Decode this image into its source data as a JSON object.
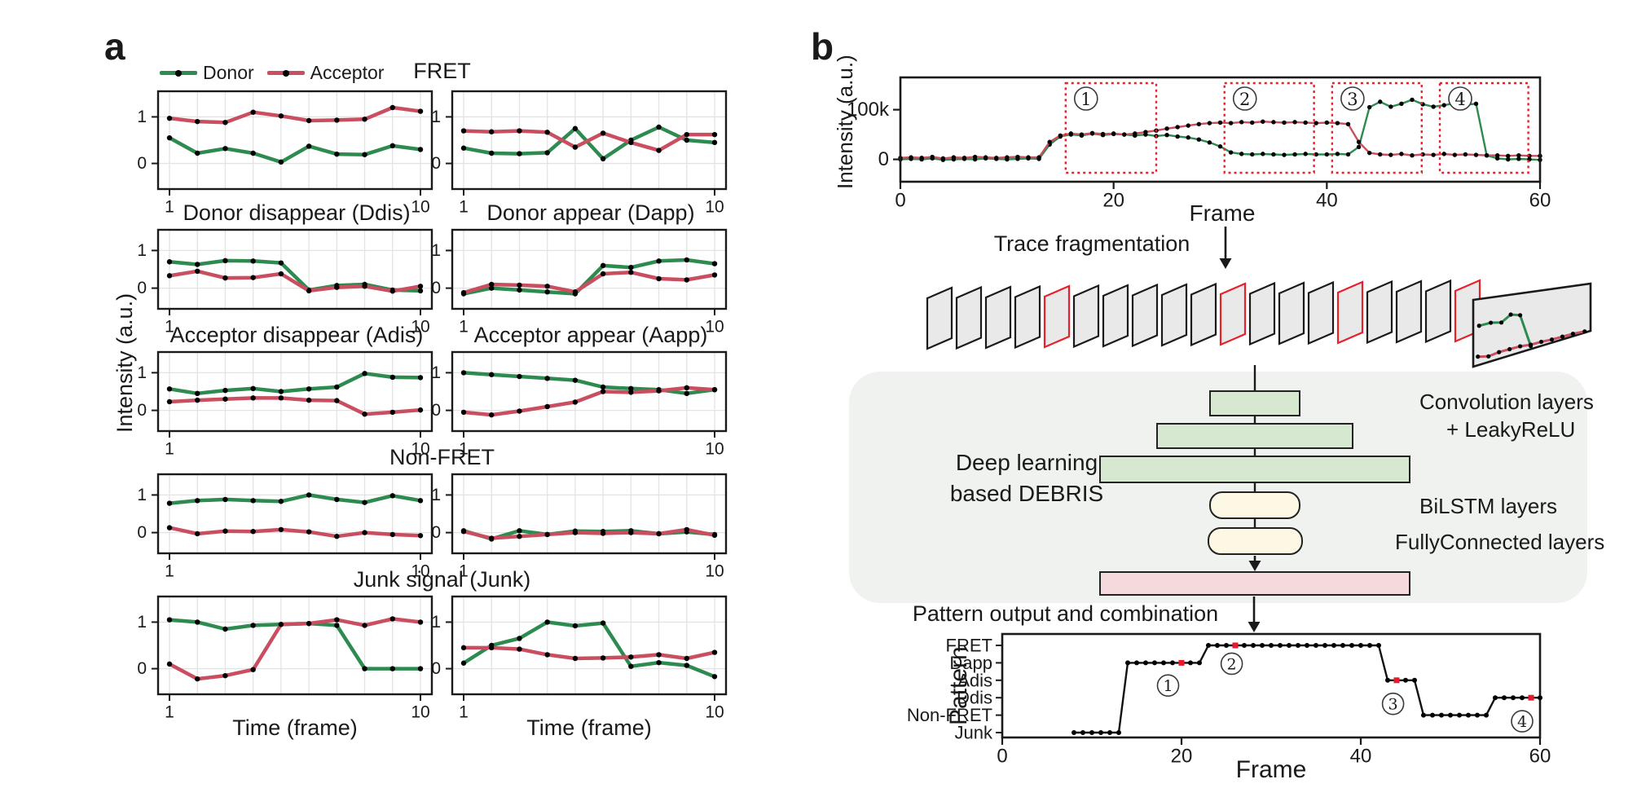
{
  "colors": {
    "donor": "#2e8b50",
    "acceptor": "#c94f60",
    "fragment_box": "#e8202a",
    "marker_red": "#e8192c",
    "grid": "#e3e3e3",
    "axis": "#1a1a1a",
    "conv_fill": "#d7e8d0",
    "lstm_fill": "#fcf8e3",
    "fc_fill": "#f5dadd",
    "diagram_bg": "#eff2ef",
    "card_fill": "#e9e9e9",
    "card_red": "#e8202a",
    "card_black": "#1a1a1a"
  },
  "panel_a": {
    "label": "a",
    "legend": [
      {
        "name": "Donor",
        "color": "#2e8b50"
      },
      {
        "name": "Acceptor",
        "color": "#c94f60"
      }
    ],
    "ylabel": "Intensity (a.u.)",
    "xlabel": "Time (frame)",
    "row_titles": [
      {
        "center": "FRET"
      },
      {
        "left": "Donor disappear (Ddis)",
        "right": "Donor appear (Dapp)"
      },
      {
        "left": "Acceptor disappear (Adis)",
        "right": "Acceptor appear (Aapp)"
      },
      {
        "center": "Non-FRET"
      },
      {
        "center": "Junk signal (Junk)"
      }
    ]
  },
  "panel_b": {
    "label": "b",
    "top_chart": {
      "ylabel": "Intensity (a.u.)",
      "xlabel": "Frame"
    },
    "flow": {
      "trace_fragmentation": "Trace fragmentation",
      "deep_line1": "Deep learning",
      "deep_line2": "based DEBRIS",
      "conv_label_1": "Convolution layers",
      "conv_label_2": "+ LeakyReLU",
      "bilstm_label": "BiLSTM layers",
      "fc_label": "FullyConnected layers",
      "pattern_output": "Pattern output and combination"
    },
    "pattern_chart": {
      "ylabel": "Pattern",
      "xlabel": "Frame"
    }
  },
  "stack": {
    "thin_cards": 19,
    "red_card_indices": [
      4,
      10,
      14,
      18
    ],
    "front_card_trace": {
      "donor": [
        [
          0.05,
          0.4
        ],
        [
          0.15,
          0.38
        ],
        [
          0.24,
          0.4
        ],
        [
          0.32,
          0.3
        ],
        [
          0.4,
          0.33
        ],
        [
          0.49,
          0.82
        ]
      ],
      "acceptor": [
        [
          0.04,
          0.86
        ],
        [
          0.13,
          0.88
        ],
        [
          0.22,
          0.84
        ],
        [
          0.31,
          0.82
        ],
        [
          0.4,
          0.8
        ],
        [
          0.49,
          0.8
        ],
        [
          0.58,
          0.78
        ],
        [
          0.67,
          0.77
        ],
        [
          0.76,
          0.75
        ],
        [
          0.85,
          0.73
        ],
        [
          0.95,
          0.72
        ]
      ]
    }
  },
  "chart_data": [
    {
      "id": "fret_1",
      "type": "line",
      "panel": "a",
      "row": 0,
      "col": 0,
      "title": "FRET",
      "xlabel": "Time (frame)",
      "ylabel": "Intensity (a.u.)",
      "x": [
        1,
        2,
        3,
        4,
        5,
        6,
        7,
        8,
        9,
        10
      ],
      "ylim": [
        -0.55,
        1.55
      ],
      "yticks": [
        1,
        0
      ],
      "xticks": [
        1,
        10
      ],
      "series": [
        {
          "name": "Donor",
          "values": [
            0.55,
            0.22,
            0.32,
            0.22,
            0.03,
            0.37,
            0.2,
            0.19,
            0.38,
            0.3
          ]
        },
        {
          "name": "Acceptor",
          "values": [
            0.97,
            0.9,
            0.88,
            1.1,
            1.02,
            0.92,
            0.93,
            0.95,
            1.2,
            1.12
          ]
        }
      ]
    },
    {
      "id": "fret_2",
      "type": "line",
      "panel": "a",
      "row": 0,
      "col": 1,
      "title": "FRET",
      "xlabel": "Time (frame)",
      "ylabel": "Intensity (a.u.)",
      "x": [
        1,
        2,
        3,
        4,
        5,
        6,
        7,
        8,
        9,
        10
      ],
      "ylim": [
        -0.55,
        1.55
      ],
      "yticks": [
        1,
        0
      ],
      "xticks": [
        1,
        10
      ],
      "series": [
        {
          "name": "Donor",
          "values": [
            0.33,
            0.22,
            0.21,
            0.23,
            0.75,
            0.1,
            0.5,
            0.78,
            0.5,
            0.45
          ]
        },
        {
          "name": "Acceptor",
          "values": [
            0.7,
            0.68,
            0.7,
            0.67,
            0.35,
            0.65,
            0.45,
            0.28,
            0.62,
            0.62
          ]
        }
      ]
    },
    {
      "id": "ddis",
      "type": "line",
      "panel": "a",
      "row": 1,
      "col": 0,
      "title": "Donor disappear (Ddis)",
      "xlabel": "Time (frame)",
      "ylabel": "Intensity (a.u.)",
      "x": [
        1,
        2,
        3,
        4,
        5,
        6,
        7,
        8,
        9,
        10
      ],
      "ylim": [
        -0.55,
        1.55
      ],
      "yticks": [
        1,
        0
      ],
      "xticks": [
        1,
        10
      ],
      "series": [
        {
          "name": "Donor",
          "values": [
            0.7,
            0.63,
            0.73,
            0.72,
            0.67,
            -0.05,
            0.07,
            0.1,
            -0.05,
            -0.07
          ]
        },
        {
          "name": "Acceptor",
          "values": [
            0.33,
            0.45,
            0.27,
            0.28,
            0.38,
            -0.07,
            0.02,
            0.05,
            -0.08,
            0.05
          ]
        }
      ]
    },
    {
      "id": "dapp",
      "type": "line",
      "panel": "a",
      "row": 1,
      "col": 1,
      "title": "Donor appear (Dapp)",
      "xlabel": "Time (frame)",
      "ylabel": "Intensity (a.u.)",
      "x": [
        1,
        2,
        3,
        4,
        5,
        6,
        7,
        8,
        9,
        10
      ],
      "ylim": [
        -0.55,
        1.55
      ],
      "yticks": [
        1,
        0
      ],
      "xticks": [
        1,
        10
      ],
      "series": [
        {
          "name": "Donor",
          "values": [
            -0.15,
            0.0,
            -0.05,
            -0.1,
            -0.15,
            0.6,
            0.55,
            0.72,
            0.75,
            0.65
          ]
        },
        {
          "name": "Acceptor",
          "values": [
            -0.12,
            0.1,
            0.08,
            0.05,
            -0.1,
            0.38,
            0.42,
            0.25,
            0.22,
            0.35
          ]
        }
      ]
    },
    {
      "id": "adis",
      "type": "line",
      "panel": "a",
      "row": 2,
      "col": 0,
      "title": "Acceptor disappear (Adis)",
      "xlabel": "Time (frame)",
      "ylabel": "Intensity (a.u.)",
      "x": [
        1,
        2,
        3,
        4,
        5,
        6,
        7,
        8,
        9,
        10
      ],
      "ylim": [
        -0.55,
        1.55
      ],
      "yticks": [
        1,
        0
      ],
      "xticks": [
        1,
        10
      ],
      "series": [
        {
          "name": "Donor",
          "values": [
            0.57,
            0.45,
            0.53,
            0.58,
            0.5,
            0.57,
            0.62,
            0.98,
            0.88,
            0.87
          ]
        },
        {
          "name": "Acceptor",
          "values": [
            0.23,
            0.27,
            0.3,
            0.33,
            0.33,
            0.27,
            0.26,
            -0.1,
            -0.05,
            0.01
          ]
        }
      ]
    },
    {
      "id": "aapp",
      "type": "line",
      "panel": "a",
      "row": 2,
      "col": 1,
      "title": "Acceptor appear (Aapp)",
      "xlabel": "Time (frame)",
      "ylabel": "Intensity (a.u.)",
      "x": [
        1,
        2,
        3,
        4,
        5,
        6,
        7,
        8,
        9,
        10
      ],
      "ylim": [
        -0.55,
        1.55
      ],
      "yticks": [
        1,
        0
      ],
      "xticks": [
        1,
        10
      ],
      "series": [
        {
          "name": "Donor",
          "values": [
            1.0,
            0.95,
            0.9,
            0.85,
            0.8,
            0.62,
            0.58,
            0.55,
            0.45,
            0.55
          ]
        },
        {
          "name": "Acceptor",
          "values": [
            -0.05,
            -0.12,
            -0.02,
            0.1,
            0.22,
            0.5,
            0.48,
            0.52,
            0.6,
            0.55
          ]
        }
      ]
    },
    {
      "id": "nonfret_1",
      "type": "line",
      "panel": "a",
      "row": 3,
      "col": 0,
      "title": "Non-FRET",
      "xlabel": "Time (frame)",
      "ylabel": "Intensity (a.u.)",
      "x": [
        1,
        2,
        3,
        4,
        5,
        6,
        7,
        8,
        9,
        10
      ],
      "ylim": [
        -0.55,
        1.55
      ],
      "yticks": [
        1,
        0
      ],
      "xticks": [
        1,
        10
      ],
      "series": [
        {
          "name": "Donor",
          "values": [
            0.78,
            0.85,
            0.88,
            0.85,
            0.83,
            1.0,
            0.88,
            0.8,
            0.98,
            0.85
          ]
        },
        {
          "name": "Acceptor",
          "values": [
            0.13,
            -0.03,
            0.04,
            0.03,
            0.08,
            0.02,
            -0.1,
            0.0,
            -0.05,
            -0.08
          ]
        }
      ]
    },
    {
      "id": "nonfret_2",
      "type": "line",
      "panel": "a",
      "row": 3,
      "col": 1,
      "title": "Non-FRET",
      "xlabel": "Time (frame)",
      "ylabel": "Intensity (a.u.)",
      "x": [
        1,
        2,
        3,
        4,
        5,
        6,
        7,
        8,
        9,
        10
      ],
      "ylim": [
        -0.55,
        1.55
      ],
      "yticks": [
        1,
        0
      ],
      "xticks": [
        1,
        10
      ],
      "series": [
        {
          "name": "Donor",
          "values": [
            0.05,
            -0.17,
            0.05,
            -0.05,
            0.04,
            0.03,
            0.05,
            -0.03,
            0.02,
            -0.05
          ]
        },
        {
          "name": "Acceptor",
          "values": [
            0.03,
            -0.15,
            -0.1,
            -0.05,
            0.0,
            -0.02,
            0.0,
            -0.03,
            0.08,
            -0.07
          ]
        }
      ]
    },
    {
      "id": "junk_1",
      "type": "line",
      "panel": "a",
      "row": 4,
      "col": 0,
      "title": "Junk signal (Junk)",
      "xlabel": "Time (frame)",
      "ylabel": "Intensity (a.u.)",
      "x": [
        1,
        2,
        3,
        4,
        5,
        6,
        7,
        8,
        9,
        10
      ],
      "ylim": [
        -0.55,
        1.55
      ],
      "yticks": [
        1,
        0
      ],
      "xticks": [
        1,
        10
      ],
      "series": [
        {
          "name": "Donor",
          "values": [
            1.05,
            1.0,
            0.85,
            0.93,
            0.95,
            0.97,
            0.93,
            0.0,
            0.0,
            0.0
          ]
        },
        {
          "name": "Acceptor",
          "values": [
            0.1,
            -0.22,
            -0.15,
            -0.02,
            0.95,
            0.97,
            1.05,
            0.93,
            1.07,
            1.0
          ]
        }
      ]
    },
    {
      "id": "junk_2",
      "type": "line",
      "panel": "a",
      "row": 4,
      "col": 1,
      "title": "Junk signal (Junk)",
      "xlabel": "Time (frame)",
      "ylabel": "Intensity (a.u.)",
      "x": [
        1,
        2,
        3,
        4,
        5,
        6,
        7,
        8,
        9,
        10
      ],
      "ylim": [
        -0.55,
        1.55
      ],
      "yticks": [
        1,
        0
      ],
      "xticks": [
        1,
        10
      ],
      "series": [
        {
          "name": "Donor",
          "values": [
            0.12,
            0.5,
            0.65,
            1.0,
            0.92,
            0.98,
            0.05,
            0.13,
            0.07,
            -0.17
          ]
        },
        {
          "name": "Acceptor",
          "values": [
            0.45,
            0.45,
            0.42,
            0.3,
            0.22,
            0.23,
            0.25,
            0.3,
            0.22,
            0.35
          ]
        }
      ]
    },
    {
      "id": "intensity_trace",
      "type": "line",
      "panel": "b",
      "xlabel": "Frame",
      "ylabel": "Intensity (a.u.)",
      "x_start": 0,
      "x_end": 60,
      "xticks": [
        0,
        20,
        40,
        60
      ],
      "yticks": [
        {
          "value": 100000,
          "label": "100k"
        },
        {
          "value": 0,
          "label": "0"
        }
      ],
      "ylim": [
        -45000,
        165000
      ],
      "series": [
        {
          "name": "Donor",
          "values": [
            0,
            1000,
            0,
            2000,
            -1000,
            0,
            1000,
            0,
            2000,
            1000,
            0,
            1000,
            2000,
            1000,
            30000,
            46000,
            50000,
            48000,
            52000,
            49000,
            51000,
            50000,
            48000,
            50000,
            47000,
            49000,
            46000,
            44000,
            40000,
            34000,
            26000,
            14000,
            11000,
            10000,
            11000,
            10000,
            9000,
            10000,
            11000,
            10000,
            10000,
            11000,
            10000,
            25000,
            105000,
            116000,
            106000,
            112000,
            120000,
            111000,
            106000,
            109000,
            113000,
            110000,
            112000,
            8000,
            2000,
            0,
            1000,
            0,
            -1000
          ]
        },
        {
          "name": "Acceptor",
          "values": [
            3000,
            4000,
            3000,
            5000,
            2000,
            4000,
            3000,
            5000,
            4000,
            3000,
            4000,
            5000,
            4000,
            4000,
            35000,
            48000,
            52000,
            50000,
            53000,
            51000,
            52000,
            50000,
            52000,
            55000,
            58000,
            62000,
            65000,
            68000,
            71000,
            73000,
            74000,
            73000,
            75000,
            74000,
            76000,
            75000,
            74000,
            75000,
            74000,
            73000,
            74000,
            73000,
            71000,
            35000,
            13000,
            10000,
            9000,
            11000,
            8000,
            10000,
            9000,
            11000,
            9000,
            10000,
            9000,
            8000,
            8000,
            7000,
            8000,
            7000,
            7000
          ]
        }
      ],
      "fragments": [
        {
          "num": "1",
          "from": 15.5,
          "to": 24
        },
        {
          "num": "2",
          "from": 30.4,
          "to": 38.8
        },
        {
          "num": "3",
          "from": 40.5,
          "to": 48.9
        },
        {
          "num": "4",
          "from": 50.6,
          "to": 58.9
        }
      ]
    },
    {
      "id": "pattern_output",
      "type": "step",
      "panel": "b",
      "xlabel": "Frame",
      "ylabel": "Pattern",
      "categories": [
        "FRET",
        "Dapp",
        "Adis",
        "Ddis",
        "Non-FRET",
        "Junk"
      ],
      "xticks": [
        0,
        20,
        40,
        60
      ],
      "xlim": [
        0,
        60
      ],
      "segments": [
        {
          "category": "Junk",
          "from": 8,
          "to": 13
        },
        {
          "category": "Dapp",
          "from": 14,
          "to": 22
        },
        {
          "category": "FRET",
          "from": 23,
          "to": 42
        },
        {
          "category": "Adis",
          "from": 43,
          "to": 46
        },
        {
          "category": "Non-FRET",
          "from": 47,
          "to": 54
        },
        {
          "category": "Ddis",
          "from": 55,
          "to": 60
        }
      ],
      "markers": [
        {
          "num": "1",
          "frame": 20,
          "category": "Dapp",
          "label_frame": 18.5,
          "label_level": 2.3
        },
        {
          "num": "2",
          "frame": 26,
          "category": "FRET",
          "label_frame": 25.6,
          "label_level": 1.05
        },
        {
          "num": "3",
          "frame": 44,
          "category": "Adis",
          "label_frame": 43.6,
          "label_level": 3.35
        },
        {
          "num": "4",
          "frame": 59,
          "category": "Ddis",
          "label_frame": 58,
          "label_level": 4.35
        }
      ]
    }
  ]
}
